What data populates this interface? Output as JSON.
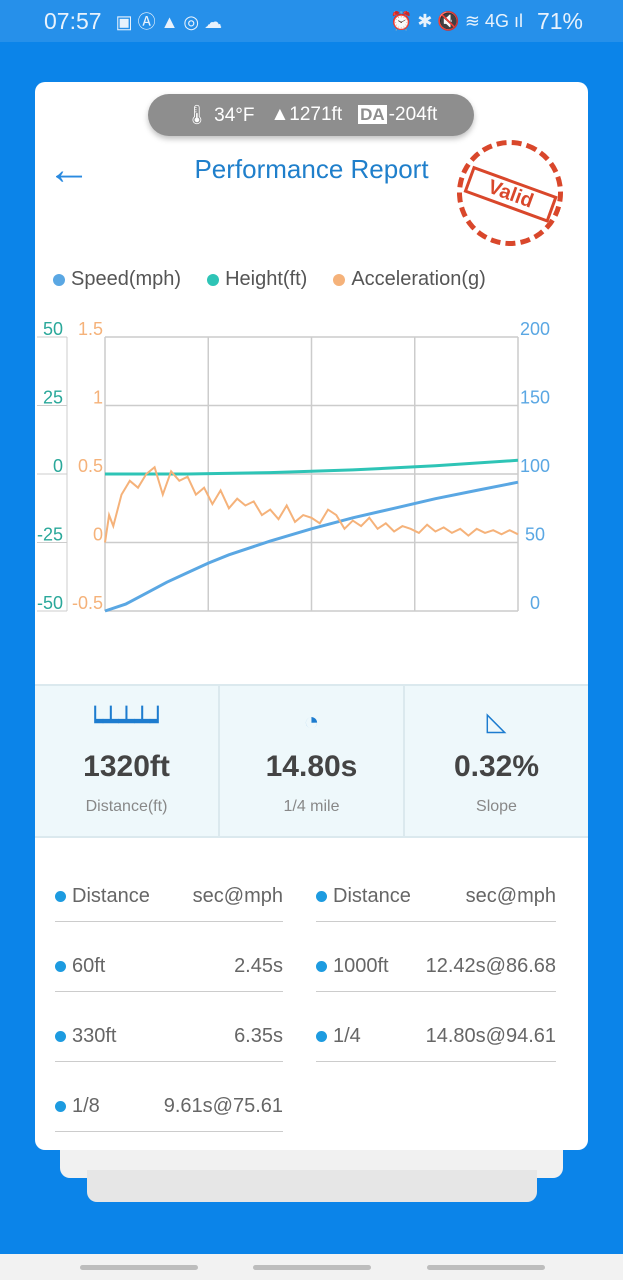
{
  "status_bar": {
    "time": "07:57",
    "battery": "71%"
  },
  "conditions": {
    "temperature": "34°F",
    "elevation": "1271ft",
    "da_label": "DA",
    "density_altitude": "-204ft"
  },
  "header": {
    "title": "Performance Report",
    "stamp": "Valid"
  },
  "legend": [
    {
      "label": "Speed(mph)",
      "color": "#5aa7e3"
    },
    {
      "label": "Height(ft)",
      "color": "#2ec4b6"
    },
    {
      "label": "Acceleration(g)",
      "color": "#f5b27a"
    }
  ],
  "chart_data": {
    "type": "line",
    "x_range": [
      0,
      1
    ],
    "axes": {
      "height": {
        "ticks": [
          "50",
          "25",
          "0",
          "-25",
          "-50"
        ],
        "range": [
          -50,
          50
        ],
        "color": "#2aa89a"
      },
      "acceleration": {
        "ticks": [
          "1.5",
          "1",
          "0.5",
          "0",
          "-0.5"
        ],
        "range": [
          -0.5,
          1.5
        ],
        "color": "#f5b27a"
      },
      "speed": {
        "ticks": [
          "200",
          "150",
          "100",
          "50",
          "0"
        ],
        "range": [
          0,
          200
        ],
        "color": "#5aa7e3"
      }
    },
    "series": [
      {
        "name": "Speed(mph)",
        "x": [
          0,
          0.05,
          0.1,
          0.15,
          0.2,
          0.25,
          0.3,
          0.4,
          0.5,
          0.6,
          0.7,
          0.8,
          0.9,
          1
        ],
        "values": [
          0,
          5,
          13,
          21,
          28,
          35,
          41,
          51,
          60,
          68,
          75,
          82,
          88,
          94
        ]
      },
      {
        "name": "Height(ft)",
        "x": [
          0,
          0.2,
          0.4,
          0.6,
          0.8,
          1
        ],
        "values": [
          0,
          0,
          0.5,
          1.5,
          3,
          5
        ]
      },
      {
        "name": "Acceleration(g)",
        "x": [
          0,
          0.01,
          0.02,
          0.04,
          0.06,
          0.08,
          0.1,
          0.12,
          0.14,
          0.16,
          0.18,
          0.2,
          0.22,
          0.24,
          0.26,
          0.28,
          0.3,
          0.32,
          0.34,
          0.36,
          0.38,
          0.4,
          0.42,
          0.44,
          0.46,
          0.48,
          0.5,
          0.52,
          0.54,
          0.56,
          0.58,
          0.6,
          0.62,
          0.64,
          0.66,
          0.68,
          0.7,
          0.72,
          0.74,
          0.76,
          0.78,
          0.8,
          0.82,
          0.84,
          0.86,
          0.88,
          0.9,
          0.92,
          0.94,
          0.96,
          0.98,
          1
        ],
        "values": [
          0,
          0.2,
          0.12,
          0.35,
          0.45,
          0.4,
          0.5,
          0.55,
          0.35,
          0.52,
          0.45,
          0.48,
          0.35,
          0.4,
          0.28,
          0.38,
          0.25,
          0.32,
          0.27,
          0.3,
          0.2,
          0.24,
          0.17,
          0.27,
          0.15,
          0.2,
          0.18,
          0.14,
          0.24,
          0.2,
          0.1,
          0.16,
          0.12,
          0.18,
          0.1,
          0.14,
          0.08,
          0.12,
          0.1,
          0.07,
          0.13,
          0.08,
          0.11,
          0.07,
          0.1,
          0.05,
          0.1,
          0.07,
          0.09,
          0.06,
          0.09,
          0.06
        ]
      }
    ],
    "grid": true
  },
  "stats": [
    {
      "icon": "ruler-icon",
      "value": "1320ft",
      "label": "Distance(ft)"
    },
    {
      "icon": "speedometer-icon",
      "value": "14.80s",
      "label": "1/4 mile"
    },
    {
      "icon": "slope-icon",
      "value": "0.32%",
      "label": "Slope"
    }
  ],
  "table": {
    "header": {
      "k": "Distance",
      "v": "sec@mph"
    },
    "left": [
      {
        "k": "60ft",
        "v": "2.45s"
      },
      {
        "k": "330ft",
        "v": "6.35s"
      },
      {
        "k": "1/8",
        "v": "9.61s@75.61"
      }
    ],
    "right": [
      {
        "k": "1000ft",
        "v": "12.42s@86.68"
      },
      {
        "k": "1/4",
        "v": "14.80s@94.61"
      }
    ]
  }
}
